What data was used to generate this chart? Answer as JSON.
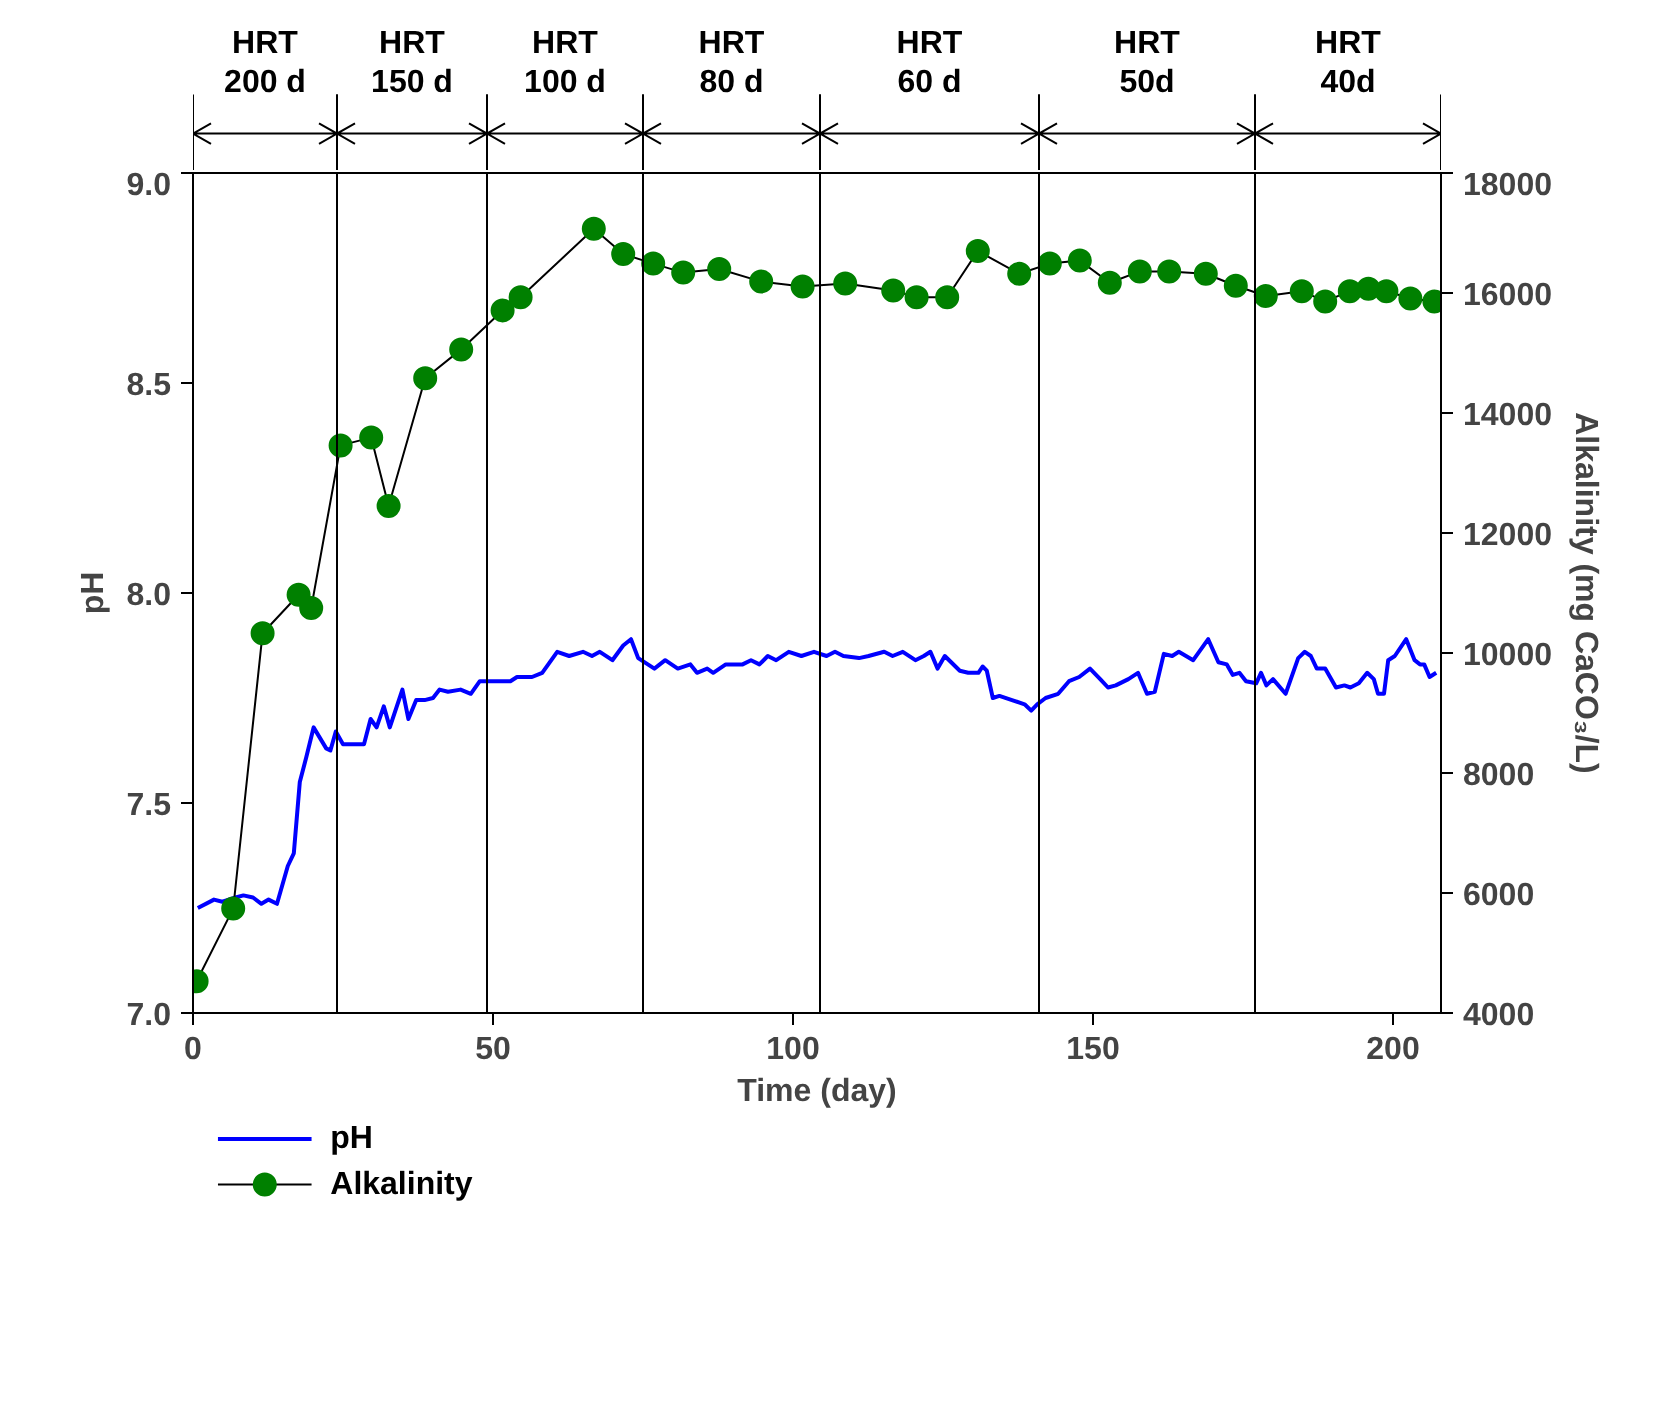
{
  "chart_data": {
    "type": "line",
    "xlabel": "Time (day)",
    "ylabel": "pH",
    "y2label": "Alkalinity (mg CaCO₃/L)",
    "xlim": [
      0,
      208
    ],
    "xticks": [
      0,
      50,
      100,
      150,
      200
    ],
    "ylim": [
      7,
      9
    ],
    "yticks": [
      {
        "value": 7,
        "label": "7.0"
      },
      {
        "value": 7.5,
        "label": "7.5"
      },
      {
        "value": 8,
        "label": "8.0"
      },
      {
        "value": 8.5,
        "label": "8.5"
      },
      {
        "value": 9,
        "label": "9.0"
      }
    ],
    "y2lim": [
      4000,
      18000
    ],
    "y2ticks": [
      4000,
      6000,
      8000,
      10000,
      12000,
      14000,
      16000,
      18000
    ],
    "grid": false,
    "legend": "bottom left",
    "series": [
      {
        "name": "pH",
        "color": "#0000ff",
        "marker": "none",
        "x": [
          0.8,
          3.5,
          4.9,
          7.1,
          8.4,
          10,
          11.4,
          12.6,
          14,
          15.8,
          16.8,
          17.8,
          18.9,
          20.1,
          22.2,
          22.9,
          23.8,
          25,
          28.5,
          29.6,
          30.6,
          31.8,
          32.8,
          34.9,
          35.9,
          37.2,
          38.6,
          40,
          41.1,
          42.5,
          44.6,
          46.3,
          47.8,
          52.9,
          54,
          56.5,
          58.2,
          60.7,
          62.7,
          65,
          66.5,
          67.8,
          69.9,
          71.7,
          73,
          74.2,
          76.9,
          78.7,
          80.8,
          82.9,
          84,
          85.7,
          86.7,
          88.8,
          91.6,
          93,
          94.4,
          95.8,
          97.2,
          99.3,
          101.4,
          103.5,
          105.6,
          107,
          108.4,
          111,
          112.6,
          115.2,
          116.6,
          118.3,
          120.4,
          121.8,
          122.9,
          124.1,
          125.3,
          127.8,
          129.2,
          130.9,
          131.6,
          132.3,
          133.3,
          134.4,
          136.5,
          138.6,
          139.7,
          140.7,
          142.1,
          144.2,
          146,
          147.7,
          149.5,
          151.2,
          152.5,
          153.8,
          155.9,
          157.5,
          159,
          160.3,
          161.8,
          163.2,
          164.3,
          166.7,
          169.2,
          170.9,
          172.3,
          173.3,
          174.4,
          175.5,
          177.2,
          178,
          178.9,
          180,
          182.1,
          184.2,
          185.3,
          186.3,
          187.3,
          188.7,
          190.5,
          191.9,
          192.9,
          194.3,
          195.7,
          196.8,
          197.5,
          198.5,
          199.2,
          200.3,
          202.2,
          203.6,
          204.5,
          205.2,
          206.1,
          207.2
        ],
        "values": [
          7.25,
          7.27,
          7.265,
          7.275,
          7.28,
          7.275,
          7.26,
          7.27,
          7.26,
          7.35,
          7.38,
          7.55,
          7.61,
          7.68,
          7.63,
          7.625,
          7.67,
          7.64,
          7.64,
          7.7,
          7.68,
          7.73,
          7.68,
          7.77,
          7.7,
          7.745,
          7.745,
          7.75,
          7.77,
          7.765,
          7.77,
          7.76,
          7.79,
          7.79,
          7.8,
          7.8,
          7.81,
          7.86,
          7.85,
          7.86,
          7.85,
          7.86,
          7.84,
          7.875,
          7.89,
          7.845,
          7.82,
          7.84,
          7.82,
          7.83,
          7.81,
          7.82,
          7.81,
          7.83,
          7.83,
          7.84,
          7.83,
          7.85,
          7.84,
          7.86,
          7.85,
          7.86,
          7.85,
          7.86,
          7.85,
          7.845,
          7.85,
          7.86,
          7.85,
          7.86,
          7.84,
          7.85,
          7.86,
          7.82,
          7.85,
          7.815,
          7.81,
          7.81,
          7.825,
          7.815,
          7.75,
          7.755,
          7.745,
          7.735,
          7.72,
          7.735,
          7.75,
          7.76,
          7.79,
          7.8,
          7.82,
          7.795,
          7.775,
          7.78,
          7.795,
          7.81,
          7.76,
          7.765,
          7.855,
          7.85,
          7.86,
          7.84,
          7.89,
          7.835,
          7.83,
          7.805,
          7.81,
          7.79,
          7.785,
          7.81,
          7.78,
          7.795,
          7.76,
          7.845,
          7.86,
          7.85,
          7.82,
          7.82,
          7.775,
          7.78,
          7.775,
          7.785,
          7.81,
          7.795,
          7.76,
          7.76,
          7.84,
          7.85,
          7.89,
          7.84,
          7.83,
          7.83,
          7.8,
          7.81
        ]
      },
      {
        "name": "Alkalinity",
        "axis": "y2",
        "color": "#008000",
        "marker": "circle",
        "x": [
          0.6,
          6.7,
          11.6,
          17.6,
          19.7,
          24.6,
          29.7,
          32.6,
          38.7,
          44.7,
          51.6,
          54.6,
          66.8,
          71.7,
          76.7,
          81.7,
          87.7,
          94.7,
          101.6,
          108.7,
          116.7,
          120.6,
          125.7,
          130.8,
          137.7,
          142.8,
          147.8,
          152.8,
          157.8,
          162.7,
          168.8,
          173.8,
          178.8,
          184.8,
          188.7,
          192.8,
          195.9,
          198.9,
          202.9,
          206.9
        ],
        "values": [
          4530,
          5740,
          10330,
          10970,
          10750,
          13460,
          13590,
          12450,
          14580,
          15060,
          15710,
          15930,
          17070,
          16650,
          16490,
          16340,
          16400,
          16190,
          16110,
          16160,
          16040,
          15930,
          15930,
          16700,
          16320,
          16490,
          16540,
          16170,
          16360,
          16360,
          16320,
          16120,
          15950,
          16030,
          15860,
          16030,
          16070,
          16030,
          15910,
          15860
        ]
      }
    ],
    "ref_lines": [
      {
        "axis": "x",
        "value": 24,
        "color": "#000000"
      },
      {
        "axis": "x",
        "value": 49,
        "color": "#000000"
      },
      {
        "axis": "x",
        "value": 75,
        "color": "#000000"
      },
      {
        "axis": "x",
        "value": 104.5,
        "color": "#000000"
      },
      {
        "axis": "x",
        "value": 141,
        "color": "#000000"
      },
      {
        "axis": "x",
        "value": 177,
        "color": "#000000"
      }
    ],
    "annotations": [
      "HRT\n200 d",
      "HRT\n150 d",
      "HRT\n100 d",
      "HRT\n80 d",
      "HRT\n60 d",
      "HRT\n50d",
      "HRT\n40d"
    ]
  }
}
